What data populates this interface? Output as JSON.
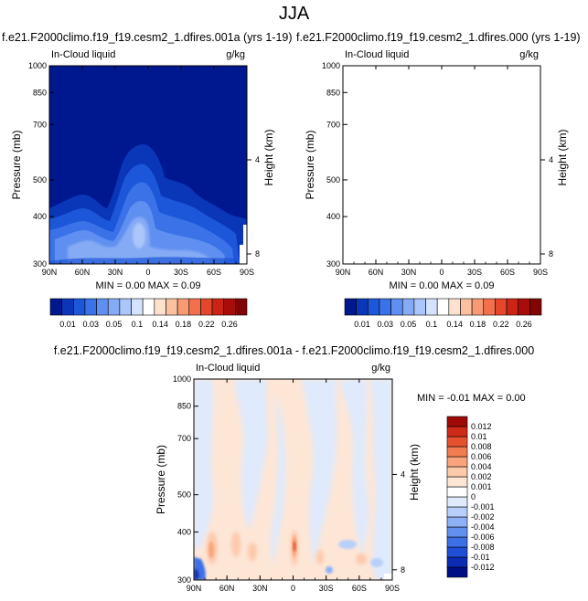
{
  "page_title": "JJA",
  "colors": {
    "bg_field": "#00188f",
    "diff_neutral": "#ffffff",
    "frame": "#000000"
  },
  "chart_data": [
    {
      "type": "heatmap",
      "title": "f.e21.F2000climo.f19_f19.cesm2_1.dfires.001a (yrs 1-19)",
      "variable_label": "In-Cloud liquid",
      "units_label": "g/kg",
      "xlabel": "",
      "ylabel": "Pressure (mb)",
      "ylabel_right": "Height (km)",
      "x_ticks": [
        "90N",
        "60N",
        "30N",
        "0",
        "30S",
        "60S",
        "90S"
      ],
      "y_ticks": [
        "300",
        "400",
        "500",
        "700",
        "850",
        "1000"
      ],
      "y_ticks_right": [
        "8",
        "4"
      ],
      "y_log_scale": true,
      "xlim": [
        90,
        -90
      ],
      "ylim": [
        1000,
        300
      ],
      "min_max_text": "MIN =  0.00  MAX =  0.09",
      "colorbar": {
        "orientation": "horizontal",
        "levels": [
          "0.01",
          "0.03",
          "0.05",
          "0.1",
          "0.14",
          "0.18",
          "0.22",
          "0.26"
        ],
        "colors": [
          "#00188f",
          "#0a36b8",
          "#1c56d9",
          "#3b72e8",
          "#5f8ff0",
          "#86abf5",
          "#abc6fa",
          "#d4e2fd",
          "#ffffff",
          "#fde1cf",
          "#fbc0a0",
          "#f89b74",
          "#f2714c",
          "#e4472c",
          "#cc2414",
          "#a90d0a",
          "#820505"
        ]
      }
    },
    {
      "type": "heatmap",
      "title": "f.e21.F2000climo.f19_f19.cesm2_1.dfires.000 (yrs 1-19)",
      "variable_label": "In-Cloud liquid",
      "units_label": "g/kg",
      "xlabel": "",
      "ylabel": "Pressure (mb)",
      "ylabel_right": "Height (km)",
      "x_ticks": [
        "90N",
        "60N",
        "30N",
        "0",
        "30S",
        "60S",
        "90S"
      ],
      "y_ticks": [
        "300",
        "400",
        "500",
        "700",
        "850",
        "1000"
      ],
      "y_ticks_right": [
        "8",
        "4"
      ],
      "y_log_scale": true,
      "xlim": [
        90,
        -90
      ],
      "ylim": [
        1000,
        300
      ],
      "min_max_text": "MIN =  0.00  MAX =  0.09",
      "colorbar": {
        "orientation": "horizontal",
        "levels": [
          "0.01",
          "0.03",
          "0.05",
          "0.1",
          "0.14",
          "0.18",
          "0.22",
          "0.26"
        ],
        "colors": [
          "#00188f",
          "#0a36b8",
          "#1c56d9",
          "#3b72e8",
          "#5f8ff0",
          "#86abf5",
          "#abc6fa",
          "#d4e2fd",
          "#ffffff",
          "#fde1cf",
          "#fbc0a0",
          "#f89b74",
          "#f2714c",
          "#e4472c",
          "#cc2414",
          "#a90d0a",
          "#820505"
        ]
      }
    },
    {
      "type": "heatmap",
      "title": "f.e21.F2000climo.f19_f19.cesm2_1.dfires.001a - f.e21.F2000climo.f19_f19.cesm2_1.dfires.000",
      "variable_label": "In-Cloud liquid",
      "units_label": "g/kg",
      "xlabel": "",
      "ylabel": "Pressure (mb)",
      "ylabel_right": "Height (km)",
      "x_ticks": [
        "90N",
        "60N",
        "30N",
        "0",
        "30S",
        "60S",
        "90S"
      ],
      "y_ticks": [
        "300",
        "400",
        "500",
        "700",
        "850",
        "1000"
      ],
      "y_ticks_right": [
        "8",
        "4"
      ],
      "y_log_scale": true,
      "xlim": [
        90,
        -90
      ],
      "ylim": [
        1000,
        300
      ],
      "min_max_text": "MIN = -0.01  MAX =  0.00",
      "colorbar": {
        "orientation": "vertical",
        "levels": [
          "-0.012",
          "-0.01",
          "-0.008",
          "-0.006",
          "-0.004",
          "-0.002",
          "-0.001",
          "0",
          "0.001",
          "0.002",
          "0.004",
          "0.006",
          "0.008",
          "0.01",
          "0.012"
        ],
        "colors": [
          "#000e85",
          "#0b2cb3",
          "#1f4fd6",
          "#3d70e6",
          "#6290ef",
          "#8eb0f5",
          "#b8cffa",
          "#dfeafd",
          "#ffffff",
          "#fde6d6",
          "#fcc9ab",
          "#f9a47c",
          "#f37b52",
          "#e5512f",
          "#cd2b17",
          "#9e0a08"
        ]
      }
    }
  ]
}
